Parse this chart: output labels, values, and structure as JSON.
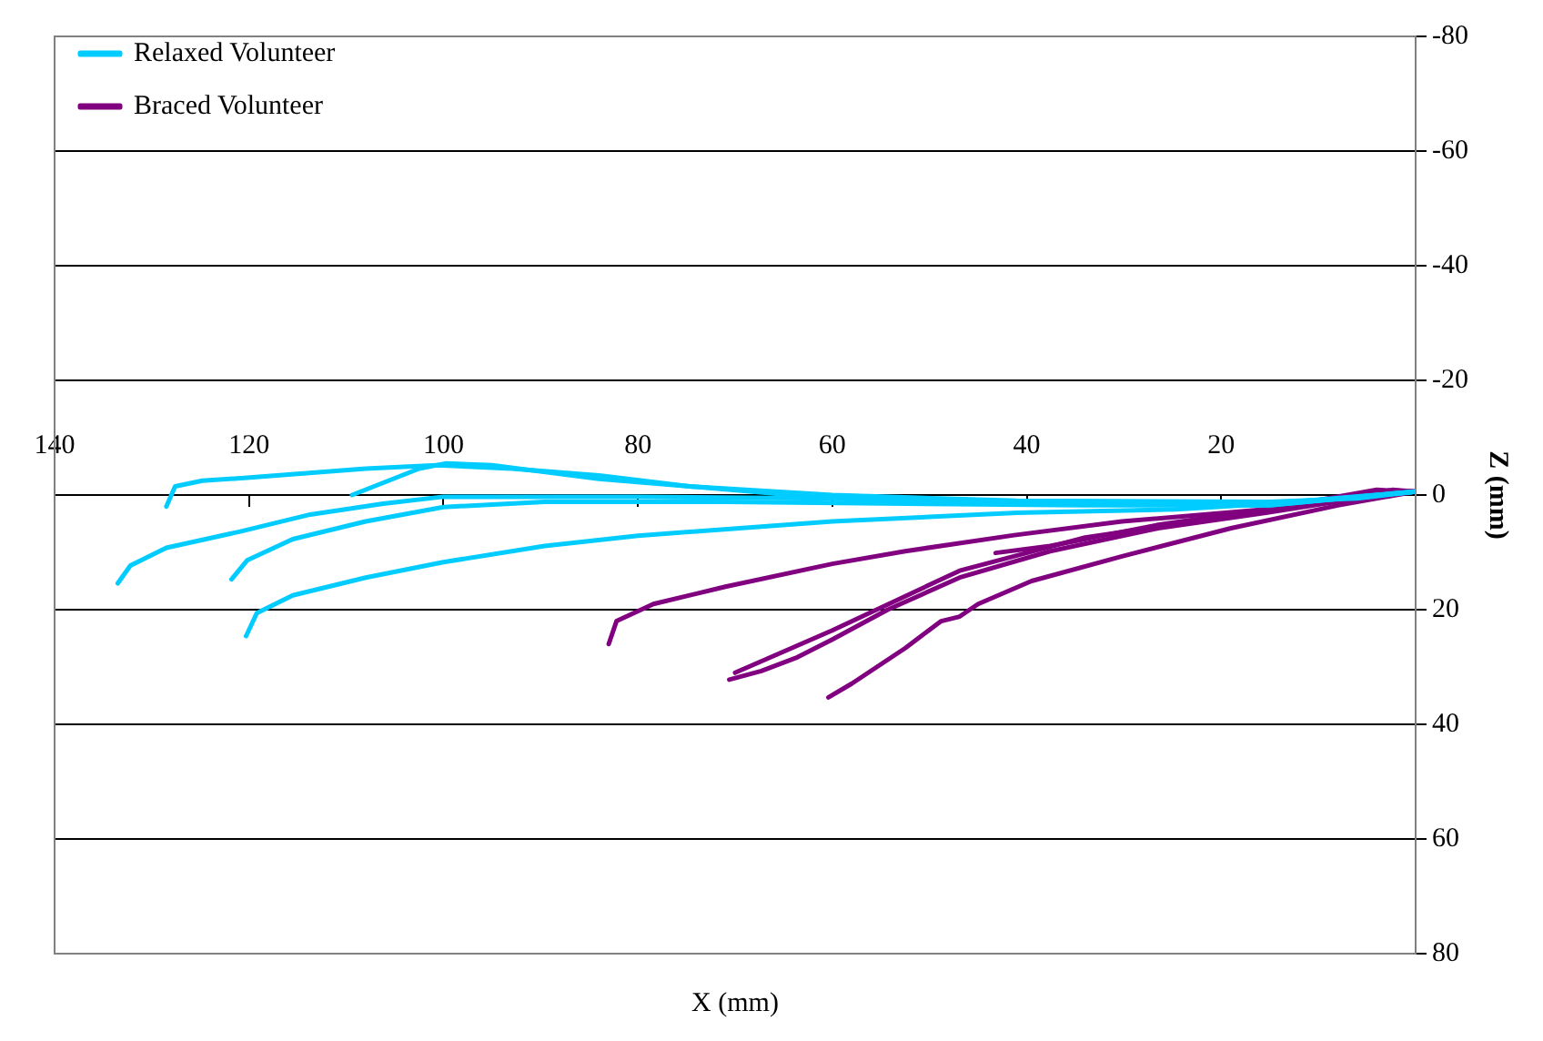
{
  "chart_data": {
    "type": "line",
    "xlabel": "X (mm)",
    "ylabel": "Z (mm)",
    "xlim": [
      140,
      0
    ],
    "xticks": [
      140,
      120,
      100,
      80,
      60,
      40,
      20
    ],
    "ylim": [
      80,
      -80
    ],
    "yticks": [
      -80,
      -60,
      -40,
      -20,
      0,
      20,
      40,
      60,
      80
    ],
    "grid": "y",
    "legend": "top left",
    "marker": "none",
    "line_style": "solid",
    "series": [
      {
        "name": "Relaxed Volunteer",
        "color": "#00ccff",
        "x": [
          128.5,
          127.6,
          124.8,
          120.2,
          108,
          100.7,
          93,
          84,
          74.7,
          60,
          41,
          15,
          6,
          0
        ],
        "values": [
          2,
          -1.5,
          -2.5,
          -3,
          -4.6,
          -5.2,
          -4.6,
          -3.4,
          -1.5,
          0,
          1,
          1.2,
          0.6,
          -0.6
        ]
      },
      {
        "color": "#00ccff",
        "x": [
          109.4,
          102.5,
          99.8,
          95,
          84,
          71,
          60,
          41,
          15,
          0
        ],
        "values": [
          0,
          -4.6,
          -5.5,
          -5.2,
          -2.8,
          -1,
          0.6,
          1.5,
          1.5,
          -0.6
        ]
      },
      {
        "color": "#00ccff",
        "x": [
          133.5,
          132.2,
          128.5,
          121,
          113.7,
          106.2,
          100,
          80,
          60,
          41,
          15,
          0
        ],
        "values": [
          15.4,
          12.3,
          9.2,
          6.4,
          3.4,
          1.5,
          0.3,
          0.3,
          0.6,
          1.5,
          1.8,
          -0.6
        ]
      },
      {
        "color": "#00ccff",
        "x": [
          121.8,
          120.2,
          115.5,
          108,
          100,
          89.6,
          71,
          52.5,
          34,
          15,
          0
        ],
        "values": [
          14.7,
          11.4,
          7.7,
          4.6,
          2.1,
          1.2,
          1.2,
          1.5,
          1.8,
          1.8,
          -0.6
        ]
      },
      {
        "color": "#00ccff",
        "x": [
          120.3,
          119.2,
          115.5,
          108,
          100,
          89.6,
          80,
          60,
          41,
          24.7,
          11.7,
          0
        ],
        "values": [
          24.6,
          20.6,
          17.5,
          14.4,
          11.7,
          8.9,
          7.1,
          4.6,
          3.1,
          2.5,
          1.2,
          -0.6
        ]
      },
      {
        "name": "Braced Volunteer",
        "color": "#800080",
        "x": [
          83,
          82.2,
          78.4,
          71,
          60,
          52.5,
          41.3,
          30.2,
          15.4,
          6,
          2.4,
          0
        ],
        "values": [
          26,
          22,
          19,
          16,
          12,
          9.8,
          7,
          4.6,
          2.5,
          0.3,
          -0.9,
          -0.6
        ]
      },
      {
        "color": "#800080",
        "x": [
          70.6,
          67.3,
          63.6,
          60,
          54.3,
          46.9,
          37.6,
          26.5,
          15.4,
          6,
          0
        ],
        "values": [
          32.2,
          30.7,
          28.3,
          25.2,
          20,
          14.4,
          9.8,
          5.8,
          3.1,
          0.6,
          -0.6
        ]
      },
      {
        "color": "#800080",
        "x": [
          70,
          60,
          46.9,
          34,
          15.4,
          4,
          0
        ],
        "values": [
          31,
          23.6,
          13.2,
          7.4,
          2.8,
          -0.6,
          -0.6
        ]
      },
      {
        "color": "#800080",
        "x": [
          43.2,
          37.6,
          26.5,
          15.4,
          4,
          0
        ],
        "values": [
          10.1,
          8.9,
          5.2,
          2.5,
          -0.9,
          -0.6
        ]
      },
      {
        "color": "#800080",
        "x": [
          60.4,
          58,
          52.5,
          48.8,
          46.9,
          45,
          39.5,
          30.2,
          19,
          8,
          0
        ],
        "values": [
          35.3,
          32.9,
          26.7,
          22,
          21.2,
          19,
          15,
          10.7,
          5.8,
          1.8,
          -0.6
        ]
      }
    ]
  }
}
